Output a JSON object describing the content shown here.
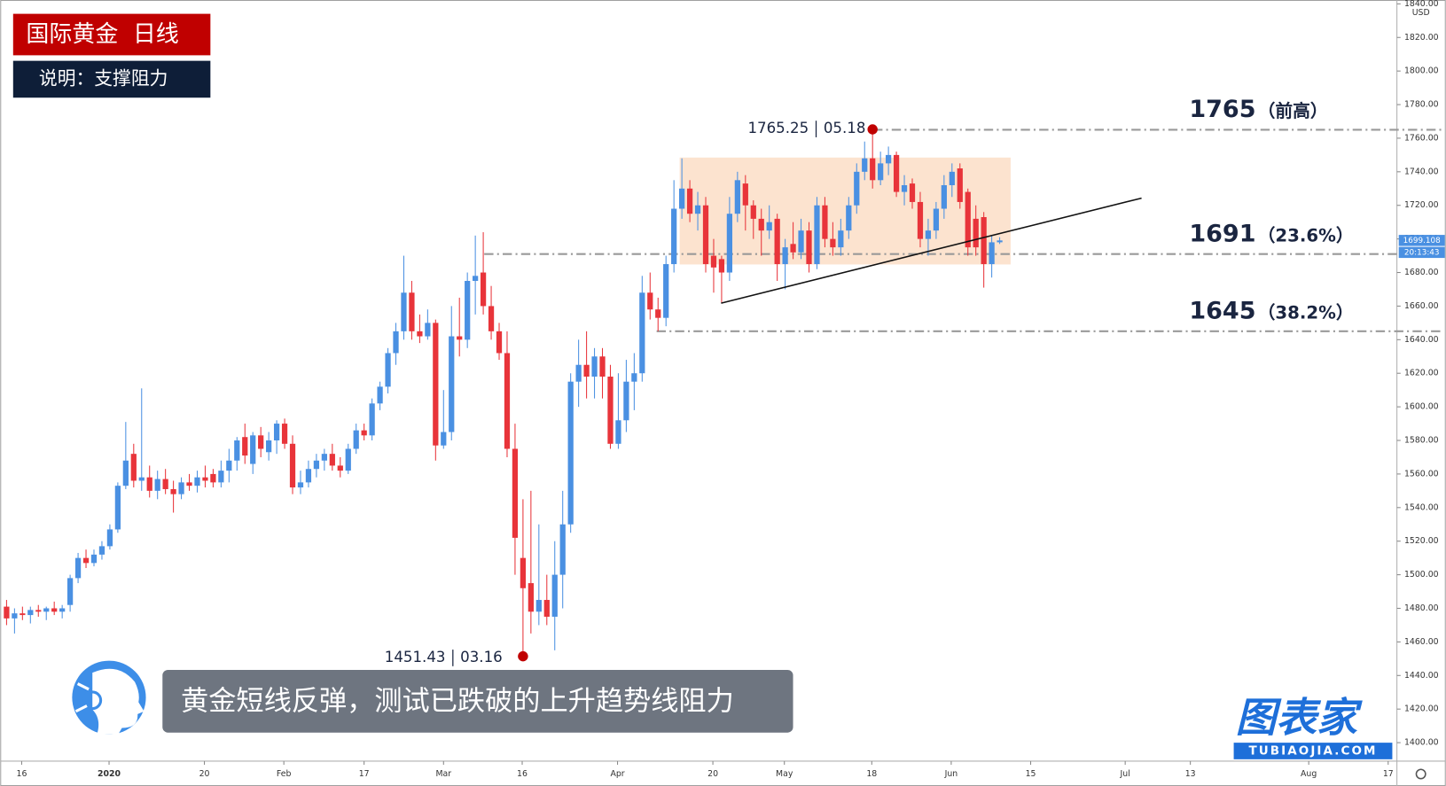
{
  "chart_data": {
    "type": "candlestick",
    "title": "国际黄金  日线",
    "subtitle": "说明：支撑阻力",
    "caption": "黄金短线反弹，测试已跌破的上升趋势线阻力",
    "currency": "USD",
    "up_color": "#4a90e2",
    "down_color": "#e8343a",
    "ylim": [
      1389,
      1842.3
    ],
    "yticks": [
      {
        "value": 1400,
        "label": "1400.00"
      },
      {
        "value": 1420,
        "label": "1420.00"
      },
      {
        "value": 1440,
        "label": "1440.00"
      },
      {
        "value": 1460,
        "label": "1460.00"
      },
      {
        "value": 1480,
        "label": "1480.00"
      },
      {
        "value": 1500,
        "label": "1500.00"
      },
      {
        "value": 1520,
        "label": "1520.00"
      },
      {
        "value": 1540,
        "label": "1540.00"
      },
      {
        "value": 1560,
        "label": "1560.00"
      },
      {
        "value": 1580,
        "label": "1580.00"
      },
      {
        "value": 1600,
        "label": "1600.00"
      },
      {
        "value": 1620,
        "label": "1620.00"
      },
      {
        "value": 1640,
        "label": "1640.00"
      },
      {
        "value": 1660,
        "label": "1660.00"
      },
      {
        "value": 1680,
        "label": "1680.00"
      },
      {
        "value": 1700,
        "label": "1700.00"
      },
      {
        "value": 1720,
        "label": "1720.00"
      },
      {
        "value": 1740,
        "label": "1740.00"
      },
      {
        "value": 1760,
        "label": "1760.00"
      },
      {
        "value": 1780,
        "label": "1780.00"
      },
      {
        "value": 1800,
        "label": "1800.00"
      },
      {
        "value": 1820,
        "label": "1820.00"
      },
      {
        "value": 1840,
        "label": "1840.00"
      }
    ],
    "xlim": [
      -0.8,
      175
    ],
    "xticks": [
      {
        "value": 1.9,
        "label": "16"
      },
      {
        "value": 12.9,
        "label": "2020"
      },
      {
        "value": 24.9,
        "label": "20"
      },
      {
        "value": 34.9,
        "label": "Feb"
      },
      {
        "value": 45,
        "label": "17"
      },
      {
        "value": 55,
        "label": "Mar"
      },
      {
        "value": 64.9,
        "label": "16"
      },
      {
        "value": 76.9,
        "label": "Apr"
      },
      {
        "value": 88.9,
        "label": "20"
      },
      {
        "value": 97.9,
        "label": "May"
      },
      {
        "value": 108.9,
        "label": "18"
      },
      {
        "value": 118.9,
        "label": "Jun"
      },
      {
        "value": 128.9,
        "label": "15"
      },
      {
        "value": 140.8,
        "label": "Jul"
      },
      {
        "value": 149,
        "label": "13"
      },
      {
        "value": 163.9,
        "label": "Aug"
      },
      {
        "value": 173.9,
        "label": "17"
      }
    ],
    "ohlc": [
      [
        1481,
        1485,
        1470,
        1474
      ],
      [
        1474,
        1480,
        1465,
        1477
      ],
      [
        1477,
        1481,
        1473,
        1476
      ],
      [
        1476,
        1481,
        1471,
        1479
      ],
      [
        1479,
        1482,
        1475,
        1478
      ],
      [
        1478,
        1481,
        1473,
        1480
      ],
      [
        1480,
        1484,
        1476,
        1478
      ],
      [
        1478,
        1482,
        1474,
        1480
      ],
      [
        1482,
        1500,
        1478,
        1498
      ],
      [
        1498,
        1513,
        1495,
        1510
      ],
      [
        1510,
        1515,
        1504,
        1507
      ],
      [
        1507,
        1515,
        1505,
        1512
      ],
      [
        1512,
        1520,
        1509,
        1517
      ],
      [
        1517,
        1530,
        1515,
        1527
      ],
      [
        1527,
        1555,
        1525,
        1553
      ],
      [
        1553,
        1591,
        1551,
        1568
      ],
      [
        1572,
        1578,
        1552,
        1556
      ],
      [
        1556,
        1611,
        1550,
        1558
      ],
      [
        1558,
        1565,
        1546,
        1550
      ],
      [
        1550,
        1562,
        1545,
        1557
      ],
      [
        1557,
        1563,
        1548,
        1551
      ],
      [
        1551,
        1556,
        1537,
        1548
      ],
      [
        1548,
        1558,
        1545,
        1555
      ],
      [
        1555,
        1560,
        1550,
        1553
      ],
      [
        1553,
        1562,
        1549,
        1558
      ],
      [
        1558,
        1565,
        1552,
        1556
      ],
      [
        1560,
        1563,
        1552,
        1555
      ],
      [
        1555,
        1568,
        1552,
        1562
      ],
      [
        1562,
        1575,
        1555,
        1568
      ],
      [
        1568,
        1582,
        1562,
        1580
      ],
      [
        1582,
        1590,
        1566,
        1571
      ],
      [
        1566,
        1585,
        1560,
        1583
      ],
      [
        1583,
        1588,
        1570,
        1575
      ],
      [
        1573,
        1585,
        1568,
        1580
      ],
      [
        1580,
        1592,
        1572,
        1590
      ],
      [
        1590,
        1593,
        1575,
        1578
      ],
      [
        1578,
        1583,
        1548,
        1552
      ],
      [
        1552,
        1562,
        1548,
        1555
      ],
      [
        1555,
        1568,
        1552,
        1563
      ],
      [
        1563,
        1572,
        1558,
        1568
      ],
      [
        1568,
        1575,
        1562,
        1572
      ],
      [
        1572,
        1578,
        1562,
        1565
      ],
      [
        1565,
        1570,
        1558,
        1562
      ],
      [
        1562,
        1578,
        1560,
        1575
      ],
      [
        1575,
        1590,
        1572,
        1586
      ],
      [
        1586,
        1590,
        1580,
        1583
      ],
      [
        1583,
        1605,
        1580,
        1602
      ],
      [
        1602,
        1615,
        1598,
        1612
      ],
      [
        1612,
        1635,
        1608,
        1632
      ],
      [
        1632,
        1650,
        1625,
        1645
      ],
      [
        1645,
        1690,
        1640,
        1668
      ],
      [
        1668,
        1675,
        1640,
        1645
      ],
      [
        1645,
        1655,
        1638,
        1642
      ],
      [
        1642,
        1658,
        1640,
        1650
      ],
      [
        1650,
        1652,
        1568,
        1577
      ],
      [
        1577,
        1610,
        1575,
        1585
      ],
      [
        1585,
        1660,
        1580,
        1642
      ],
      [
        1642,
        1665,
        1630,
        1640
      ],
      [
        1640,
        1680,
        1635,
        1675
      ],
      [
        1675,
        1702,
        1655,
        1678
      ],
      [
        1680,
        1704,
        1655,
        1660
      ],
      [
        1660,
        1672,
        1640,
        1645
      ],
      [
        1645,
        1650,
        1628,
        1632
      ],
      [
        1632,
        1645,
        1570,
        1575
      ],
      [
        1575,
        1590,
        1500,
        1522
      ],
      [
        1510,
        1545,
        1451.43,
        1492
      ],
      [
        1495,
        1550,
        1465,
        1478
      ],
      [
        1478,
        1530,
        1470,
        1485
      ],
      [
        1485,
        1500,
        1470,
        1475
      ],
      [
        1475,
        1520,
        1455,
        1500
      ],
      [
        1500,
        1550,
        1480,
        1530
      ],
      [
        1530,
        1620,
        1525,
        1615
      ],
      [
        1615,
        1640,
        1600,
        1625
      ],
      [
        1625,
        1645,
        1605,
        1618
      ],
      [
        1618,
        1635,
        1605,
        1630
      ],
      [
        1630,
        1635,
        1605,
        1618
      ],
      [
        1618,
        1625,
        1575,
        1578
      ],
      [
        1578,
        1620,
        1575,
        1592
      ],
      [
        1592,
        1628,
        1585,
        1615
      ],
      [
        1615,
        1632,
        1598,
        1620
      ],
      [
        1620,
        1678,
        1615,
        1668
      ],
      [
        1668,
        1680,
        1652,
        1658
      ],
      [
        1658,
        1665,
        1645,
        1653
      ],
      [
        1653,
        1690,
        1648,
        1685
      ],
      [
        1685,
        1735,
        1680,
        1718
      ],
      [
        1718,
        1748,
        1712,
        1730
      ],
      [
        1730,
        1735,
        1710,
        1715
      ],
      [
        1715,
        1728,
        1705,
        1720
      ],
      [
        1720,
        1725,
        1680,
        1685
      ],
      [
        1690,
        1700,
        1668,
        1683
      ],
      [
        1688,
        1690,
        1662,
        1680
      ],
      [
        1680,
        1725,
        1675,
        1715
      ],
      [
        1715,
        1740,
        1710,
        1735
      ],
      [
        1733,
        1738,
        1705,
        1720
      ],
      [
        1720,
        1723,
        1700,
        1712
      ],
      [
        1712,
        1718,
        1690,
        1705
      ],
      [
        1705,
        1720,
        1700,
        1710
      ],
      [
        1712,
        1715,
        1675,
        1685
      ],
      [
        1685,
        1700,
        1670,
        1695
      ],
      [
        1697,
        1710,
        1688,
        1692
      ],
      [
        1692,
        1712,
        1688,
        1705
      ],
      [
        1705,
        1710,
        1680,
        1685
      ],
      [
        1685,
        1725,
        1682,
        1720
      ],
      [
        1720,
        1725,
        1695,
        1700
      ],
      [
        1700,
        1710,
        1690,
        1695
      ],
      [
        1695,
        1712,
        1690,
        1705
      ],
      [
        1705,
        1725,
        1700,
        1720
      ],
      [
        1720,
        1745,
        1715,
        1740
      ],
      [
        1740,
        1758,
        1735,
        1748
      ],
      [
        1748,
        1765.25,
        1730,
        1735
      ],
      [
        1735,
        1752,
        1732,
        1745
      ],
      [
        1745,
        1755,
        1738,
        1750
      ],
      [
        1750,
        1752,
        1725,
        1728
      ],
      [
        1728,
        1738,
        1720,
        1732
      ],
      [
        1733,
        1736,
        1718,
        1722
      ],
      [
        1722,
        1728,
        1695,
        1700
      ],
      [
        1700,
        1712,
        1690,
        1705
      ],
      [
        1705,
        1722,
        1700,
        1718
      ],
      [
        1718,
        1738,
        1712,
        1732
      ],
      [
        1732,
        1745,
        1725,
        1740
      ],
      [
        1742,
        1745,
        1718,
        1722
      ],
      [
        1728,
        1730,
        1690,
        1695
      ],
      [
        1712,
        1720,
        1690,
        1695
      ],
      [
        1713,
        1716,
        1671,
        1685
      ],
      [
        1685,
        1702,
        1677,
        1698
      ],
      [
        1698,
        1701,
        1697,
        1699.108
      ]
    ],
    "levels": [
      {
        "value": 1765,
        "note": "（前高）"
      },
      {
        "value": 1691,
        "note": "（23.6%）"
      },
      {
        "value": 1645,
        "note": "（38.2%）"
      }
    ],
    "high_mark": {
      "value": 1765.25,
      "date": "05.18"
    },
    "low_mark": {
      "value": 1451.43,
      "date": "03.16"
    },
    "last_price": 1699.108,
    "countdown": "20:13:43"
  },
  "logo": {
    "name": "图表家",
    "site": "TUBIAOJIA.COM"
  }
}
